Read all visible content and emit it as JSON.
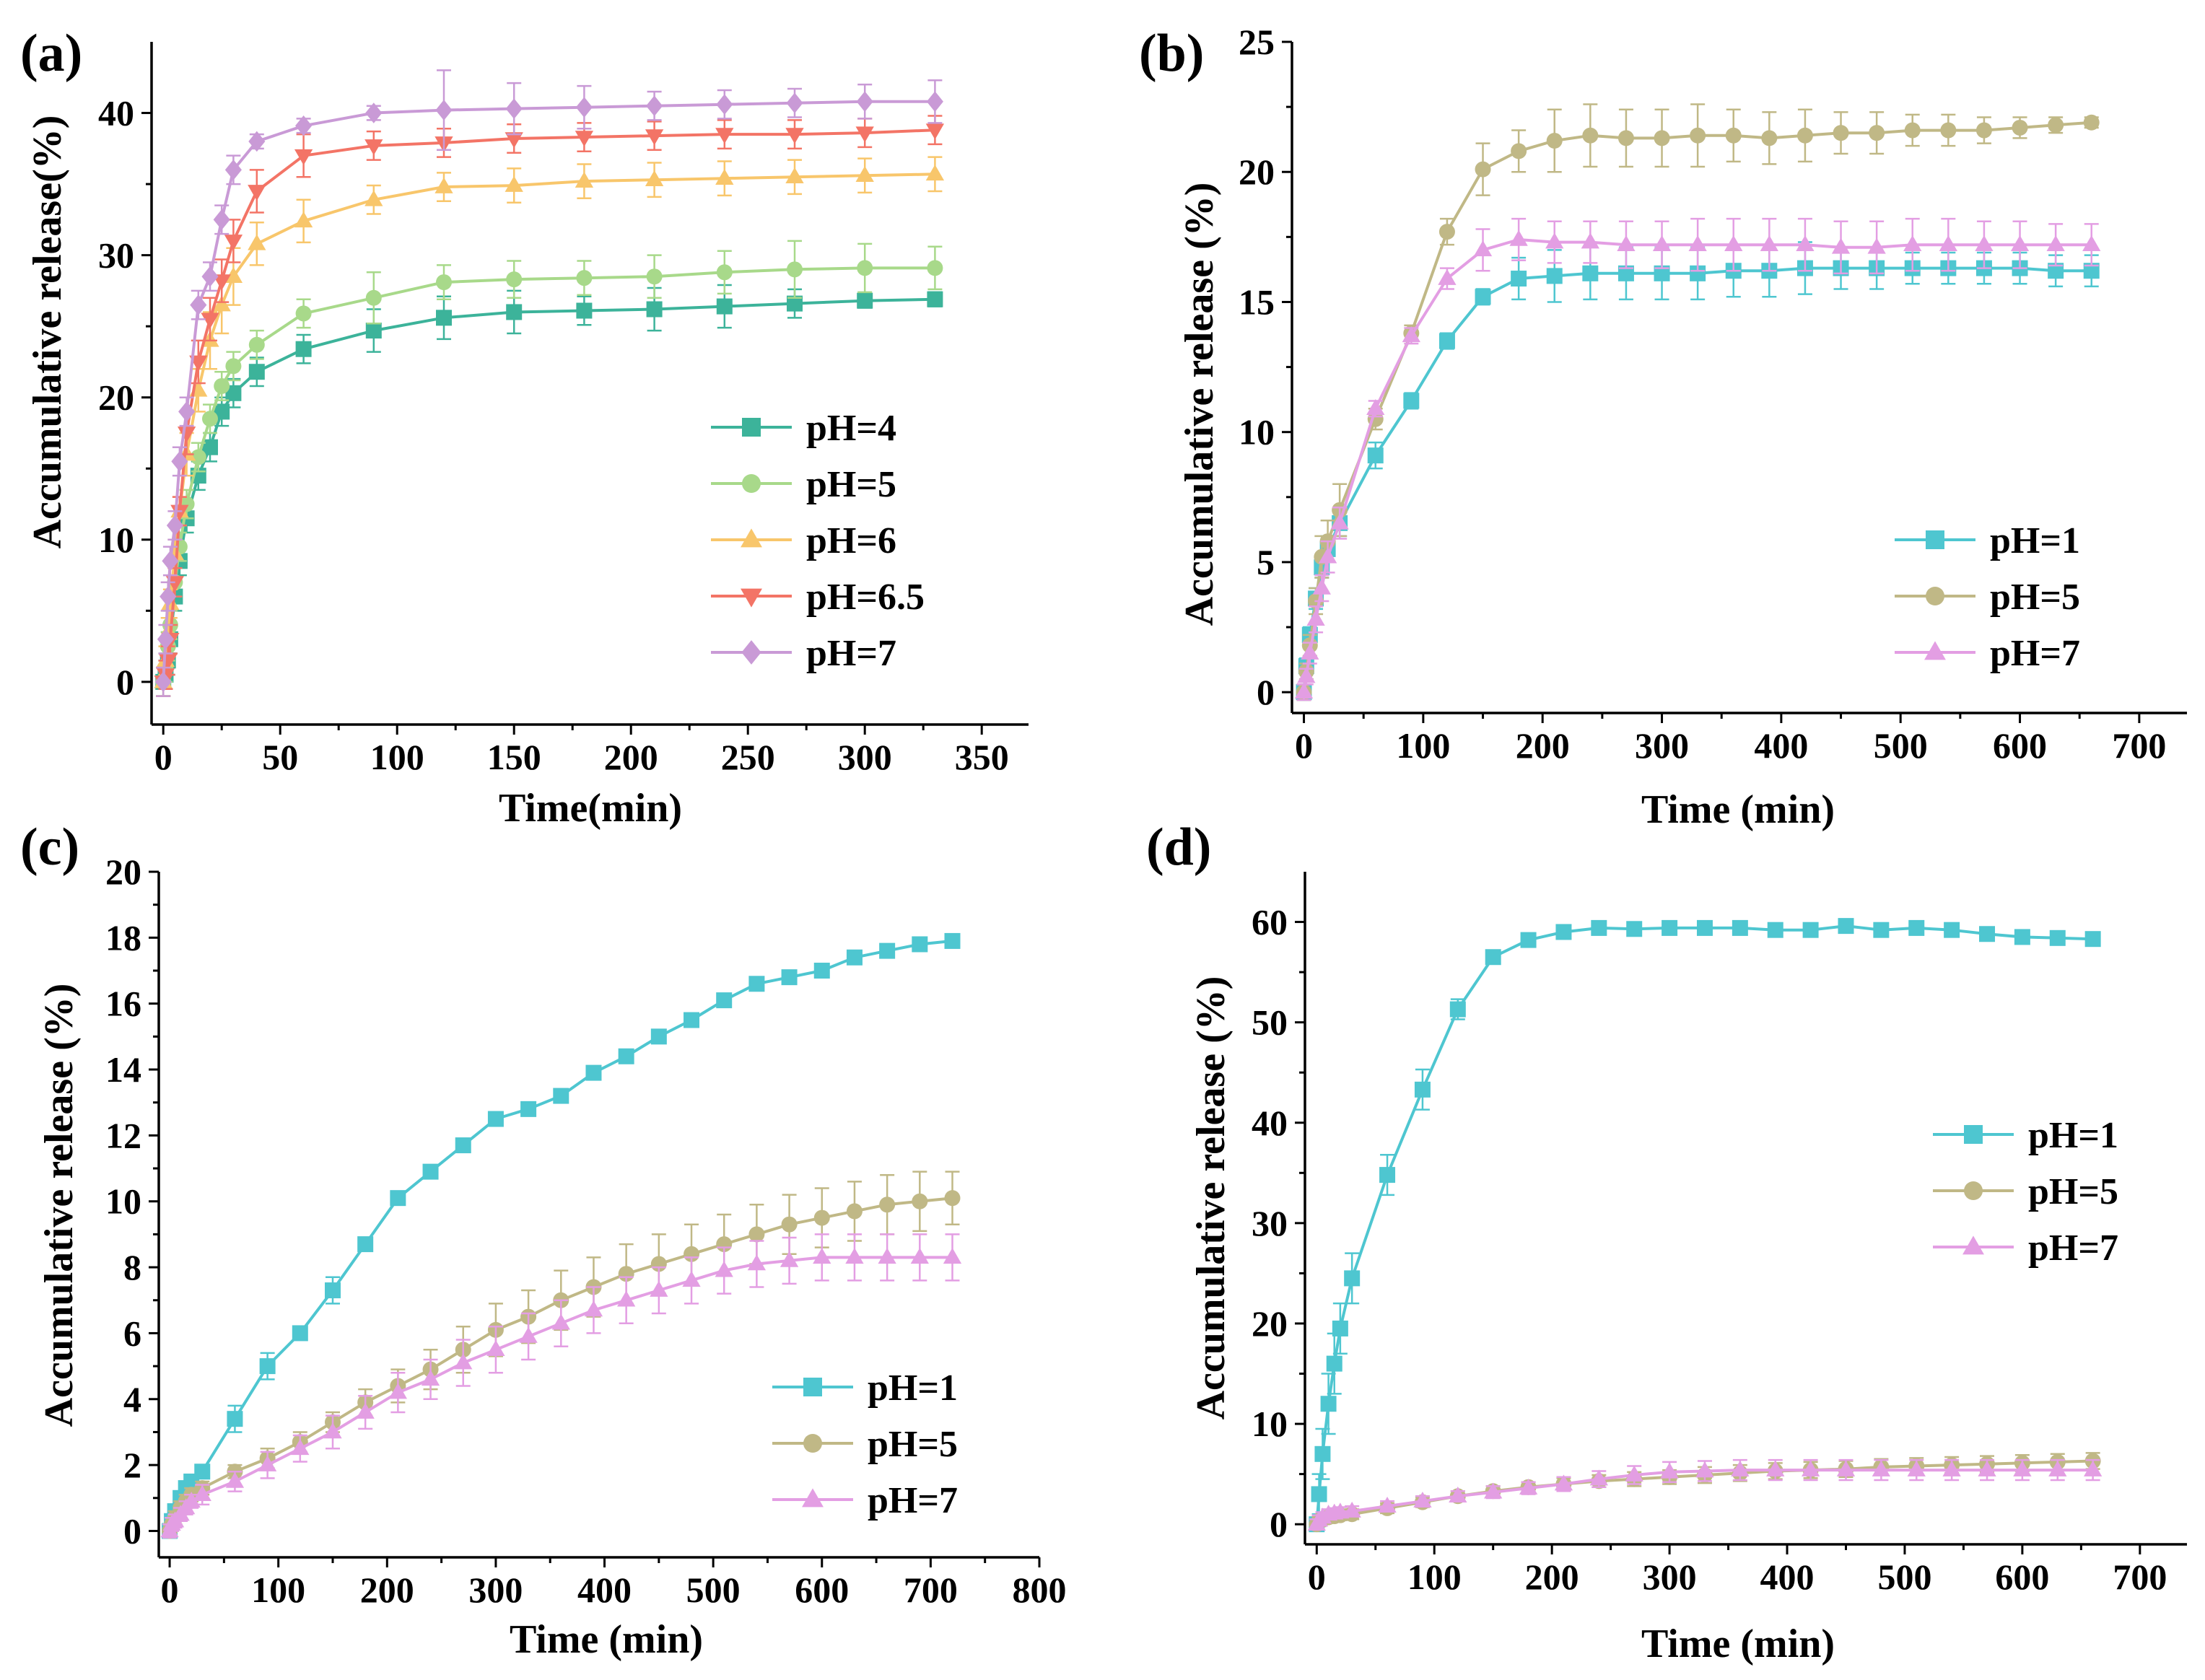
{
  "chart_data": [
    {
      "type": "line",
      "panel_label": "(a)",
      "xlabel": "Time(min)",
      "ylabel": "Accumulative release(%)",
      "xlim": [
        -5,
        370
      ],
      "ylim": [
        -3,
        45
      ],
      "xticks": [
        0,
        50,
        100,
        150,
        200,
        250,
        300,
        350
      ],
      "yticks": [
        0,
        10,
        20,
        30,
        40
      ],
      "x": [
        0,
        1,
        2,
        3,
        5,
        7,
        10,
        15,
        20,
        25,
        30,
        40,
        60,
        90,
        120,
        150,
        180,
        210,
        240,
        270,
        300,
        330
      ],
      "series": [
        {
          "name": "pH=4",
          "color": "#3cb39a",
          "marker": "square",
          "values": [
            0,
            0.5,
            1.5,
            3,
            6,
            8.5,
            11.5,
            14.5,
            16.5,
            19,
            20.3,
            21.8,
            23.4,
            24.7,
            25.6,
            26,
            26.1,
            26.2,
            26.4,
            26.6,
            26.8,
            26.9
          ],
          "errors": [
            1.0,
            1.0,
            1.0,
            1.0,
            1.0,
            1.0,
            1.0,
            1.0,
            1.0,
            1.0,
            1.0,
            1.0,
            1.0,
            1.5,
            1.5,
            1.5,
            1.0,
            1.5,
            1.5,
            1.0,
            0.5,
            0.5
          ]
        },
        {
          "name": "pH=5",
          "color": "#a8d98a",
          "marker": "circle",
          "values": [
            0,
            1,
            2.5,
            4,
            7,
            9.5,
            12.5,
            15.8,
            18.5,
            20.8,
            22.2,
            23.7,
            25.9,
            27,
            28.1,
            28.3,
            28.4,
            28.5,
            28.8,
            29,
            29.1,
            29.1
          ],
          "errors": [
            1.0,
            1.0,
            1.0,
            1.0,
            1.0,
            1.0,
            1.0,
            1.0,
            1.0,
            1.0,
            1.0,
            1.0,
            1.0,
            1.8,
            1.2,
            1.3,
            1.2,
            1.5,
            1.5,
            2.0,
            1.7,
            1.5
          ]
        },
        {
          "name": "pH=6",
          "color": "#f8c66b",
          "marker": "triangle-up",
          "values": [
            0,
            1.5,
            3.5,
            5.5,
            9,
            12,
            16,
            20.5,
            24,
            26.5,
            28.5,
            30.8,
            32.4,
            33.9,
            34.8,
            34.9,
            35.2,
            35.3,
            35.4,
            35.5,
            35.6,
            35.7
          ],
          "errors": [
            1.0,
            1.0,
            1.0,
            1.0,
            1.0,
            1.0,
            1.5,
            1.5,
            2.0,
            2.0,
            2.0,
            1.5,
            1.5,
            1.0,
            1.0,
            1.2,
            1.2,
            1.2,
            1.2,
            1.2,
            1.2,
            1.2
          ]
        },
        {
          "name": "pH=6.5",
          "color": "#f37466",
          "marker": "triangle-down",
          "values": [
            0,
            0.5,
            1.5,
            3,
            7,
            12,
            17.5,
            22.5,
            25.5,
            28.2,
            31,
            34.5,
            37,
            37.7,
            37.9,
            38.2,
            38.3,
            38.4,
            38.5,
            38.5,
            38.6,
            38.8
          ],
          "errors": [
            1.0,
            1.0,
            1.0,
            1.0,
            1.0,
            1.0,
            1.5,
            1.5,
            1.5,
            1.5,
            1.5,
            1.5,
            1.5,
            1.0,
            1.0,
            1.0,
            1.0,
            1.0,
            1.0,
            1.0,
            1.0,
            1.0
          ]
        },
        {
          "name": "pH=7",
          "color": "#c99ad6",
          "marker": "diamond",
          "values": [
            0,
            3,
            6,
            8.5,
            11,
            15.5,
            19,
            26.5,
            28.5,
            32.5,
            36,
            38,
            39.1,
            40,
            40.2,
            40.3,
            40.4,
            40.5,
            40.6,
            40.7,
            40.8,
            40.8
          ],
          "errors": [
            1.0,
            1.0,
            1.0,
            1.0,
            1.0,
            1.0,
            1.0,
            1.0,
            1.0,
            1.0,
            1.0,
            0.5,
            0.5,
            0.5,
            2.8,
            1.8,
            1.5,
            1.0,
            1.0,
            1.0,
            1.2,
            1.5
          ]
        }
      ]
    },
    {
      "type": "line",
      "panel_label": "(b)",
      "xlabel": "Time (min)",
      "ylabel": "Accumulative release (%)",
      "xlim": [
        -10,
        740
      ],
      "ylim": [
        -0.8,
        25
      ],
      "xticks": [
        0,
        100,
        200,
        300,
        400,
        500,
        600,
        700
      ],
      "yticks": [
        0,
        5,
        10,
        15,
        20,
        25
      ],
      "x": [
        0,
        2,
        5,
        10,
        15,
        20,
        30,
        60,
        90,
        120,
        150,
        180,
        210,
        240,
        270,
        300,
        330,
        360,
        390,
        420,
        450,
        480,
        510,
        540,
        570,
        600,
        630,
        660
      ],
      "series": [
        {
          "name": "pH=1",
          "color": "#4ec6d0",
          "marker": "square",
          "values": [
            0,
            1.0,
            2.2,
            3.6,
            4.8,
            5.5,
            6.5,
            9.1,
            11.2,
            13.5,
            15.2,
            15.9,
            16.0,
            16.1,
            16.1,
            16.1,
            16.1,
            16.2,
            16.2,
            16.3,
            16.3,
            16.3,
            16.3,
            16.3,
            16.3,
            16.3,
            16.2,
            16.2
          ],
          "errors": [
            0.3,
            0.3,
            0.3,
            0.4,
            0.4,
            0.5,
            0.5,
            0.5,
            0.3,
            0.3,
            0.3,
            0.8,
            1.0,
            1.0,
            1.0,
            1.0,
            1.0,
            1.0,
            1.0,
            1.0,
            0.8,
            0.8,
            0.6,
            0.6,
            0.6,
            0.6,
            0.6,
            0.6
          ]
        },
        {
          "name": "pH=5",
          "color": "#c0b886",
          "marker": "circle",
          "values": [
            0,
            0.8,
            1.8,
            3.5,
            5.2,
            5.8,
            7.0,
            10.5,
            13.8,
            17.7,
            20.1,
            20.8,
            21.2,
            21.4,
            21.3,
            21.3,
            21.4,
            21.4,
            21.3,
            21.4,
            21.5,
            21.5,
            21.6,
            21.6,
            21.6,
            21.7,
            21.8,
            21.9
          ],
          "errors": [
            0.3,
            0.3,
            0.4,
            0.5,
            0.8,
            0.8,
            1.0,
            0.4,
            0.3,
            0.5,
            1.0,
            0.8,
            1.2,
            1.2,
            1.1,
            1.1,
            1.2,
            1.0,
            1.0,
            1.0,
            0.8,
            0.8,
            0.6,
            0.6,
            0.5,
            0.4,
            0.3,
            0.2
          ]
        },
        {
          "name": "pH=7",
          "color": "#e39ee3",
          "marker": "triangle-up",
          "values": [
            0,
            0.6,
            1.5,
            2.8,
            4.0,
            5.2,
            6.5,
            10.9,
            13.7,
            15.9,
            17.0,
            17.4,
            17.3,
            17.3,
            17.2,
            17.2,
            17.2,
            17.2,
            17.2,
            17.2,
            17.1,
            17.1,
            17.2,
            17.2,
            17.2,
            17.2,
            17.2,
            17.2
          ],
          "errors": [
            0.3,
            0.3,
            0.4,
            0.5,
            0.5,
            0.6,
            0.6,
            0.3,
            0.3,
            0.4,
            0.8,
            0.8,
            0.8,
            0.8,
            0.9,
            0.9,
            1.0,
            1.0,
            1.0,
            1.0,
            1.0,
            1.0,
            1.0,
            1.0,
            0.9,
            0.9,
            0.8,
            0.8
          ]
        }
      ]
    },
    {
      "type": "line",
      "panel_label": "(c)",
      "xlabel": "Time (min)",
      "ylabel": "Accumulative release (%)",
      "xlim": [
        -10,
        800
      ],
      "ylim": [
        -0.8,
        20
      ],
      "xticks": [
        0,
        100,
        200,
        300,
        400,
        500,
        600,
        700,
        800
      ],
      "yticks": [
        0,
        2,
        4,
        6,
        8,
        10,
        12,
        14,
        16,
        18,
        20
      ],
      "x": [
        0,
        2,
        5,
        10,
        15,
        20,
        30,
        60,
        90,
        120,
        150,
        180,
        210,
        240,
        270,
        300,
        330,
        360,
        390,
        420,
        450,
        480,
        510,
        540,
        570,
        600,
        630,
        660,
        690,
        720
      ],
      "series": [
        {
          "name": "pH=1",
          "color": "#4ec6d0",
          "marker": "square",
          "values": [
            0,
            0.3,
            0.6,
            1.0,
            1.3,
            1.5,
            1.8,
            3.4,
            5.0,
            6.0,
            7.3,
            8.7,
            10.1,
            10.9,
            11.7,
            12.5,
            12.8,
            13.2,
            13.9,
            14.4,
            15.0,
            15.5,
            16.1,
            16.6,
            16.8,
            17.0,
            17.4,
            17.6,
            17.8,
            17.9
          ],
          "errors": [
            0.2,
            0.2,
            0.2,
            0.2,
            0.2,
            0.2,
            0.2,
            0.4,
            0.4,
            0.2,
            0.4,
            0.2,
            0.2,
            0.2,
            0.2,
            0.2,
            0.2,
            0.2,
            0.2,
            0.2,
            0.2,
            0.2,
            0.2,
            0.2,
            0.2,
            0.2,
            0.2,
            0.2,
            0.2,
            0.2
          ]
        },
        {
          "name": "pH=5",
          "color": "#c0b886",
          "marker": "circle",
          "values": [
            0,
            0.2,
            0.4,
            0.7,
            0.9,
            1.1,
            1.3,
            1.8,
            2.2,
            2.7,
            3.3,
            3.9,
            4.4,
            4.9,
            5.5,
            6.1,
            6.5,
            7.0,
            7.4,
            7.8,
            8.1,
            8.4,
            8.7,
            9.0,
            9.3,
            9.5,
            9.7,
            9.9,
            10.0,
            10.1
          ],
          "errors": [
            0.2,
            0.2,
            0.2,
            0.2,
            0.2,
            0.2,
            0.2,
            0.2,
            0.3,
            0.3,
            0.3,
            0.4,
            0.5,
            0.6,
            0.7,
            0.8,
            0.8,
            0.9,
            0.9,
            0.9,
            0.9,
            0.9,
            0.9,
            0.9,
            0.9,
            0.9,
            0.9,
            0.9,
            0.9,
            0.8
          ]
        },
        {
          "name": "pH=7",
          "color": "#e39ee3",
          "marker": "triangle-up",
          "values": [
            0,
            0.2,
            0.3,
            0.5,
            0.7,
            0.9,
            1.1,
            1.5,
            2.0,
            2.5,
            3.0,
            3.6,
            4.2,
            4.6,
            5.1,
            5.5,
            5.9,
            6.3,
            6.7,
            7.0,
            7.3,
            7.6,
            7.9,
            8.1,
            8.2,
            8.3,
            8.3,
            8.3,
            8.3,
            8.3
          ],
          "errors": [
            0.2,
            0.2,
            0.2,
            0.2,
            0.2,
            0.2,
            0.3,
            0.3,
            0.4,
            0.4,
            0.5,
            0.5,
            0.6,
            0.6,
            0.7,
            0.7,
            0.7,
            0.7,
            0.7,
            0.7,
            0.7,
            0.7,
            0.7,
            0.7,
            0.7,
            0.7,
            0.7,
            0.7,
            0.7,
            0.7
          ]
        }
      ]
    },
    {
      "type": "line",
      "panel_label": "(d)",
      "xlabel": "Time (min)",
      "ylabel": "Accumulative release (%)",
      "xlim": [
        -10,
        740
      ],
      "ylim": [
        -2,
        65
      ],
      "xticks": [
        0,
        100,
        200,
        300,
        400,
        500,
        600,
        700
      ],
      "yticks": [
        0,
        10,
        20,
        30,
        40,
        50,
        60
      ],
      "x": [
        0,
        2,
        5,
        10,
        15,
        20,
        30,
        60,
        90,
        120,
        150,
        180,
        210,
        240,
        270,
        300,
        330,
        360,
        390,
        420,
        450,
        480,
        510,
        540,
        570,
        600,
        630,
        660
      ],
      "series": [
        {
          "name": "pH=1",
          "color": "#4ec6d0",
          "marker": "square",
          "values": [
            0,
            3,
            7,
            12,
            16,
            19.5,
            24.5,
            34.8,
            43.3,
            51.3,
            56.5,
            58.2,
            59,
            59.4,
            59.3,
            59.4,
            59.4,
            59.4,
            59.2,
            59.2,
            59.6,
            59.2,
            59.4,
            59.2,
            58.8,
            58.5,
            58.4,
            58.3
          ],
          "errors": [
            0.5,
            2.0,
            2.5,
            3.0,
            3.0,
            2.5,
            2.5,
            2.0,
            2.0,
            1.0,
            0.5,
            0.5,
            0.5,
            0.5,
            0.5,
            0.5,
            0.5,
            0.5,
            0.5,
            0.5,
            0.5,
            0.5,
            0.5,
            0.5,
            0.5,
            0.5,
            0.5,
            0.5
          ]
        },
        {
          "name": "pH=5",
          "color": "#c0b886",
          "marker": "circle",
          "values": [
            0,
            0.3,
            0.5,
            0.7,
            0.8,
            0.9,
            1.0,
            1.6,
            2.2,
            2.8,
            3.3,
            3.7,
            4.0,
            4.3,
            4.5,
            4.7,
            4.9,
            5.1,
            5.3,
            5.4,
            5.5,
            5.7,
            5.8,
            5.9,
            6.0,
            6.1,
            6.2,
            6.3
          ],
          "errors": [
            0.5,
            0.5,
            0.5,
            0.5,
            0.5,
            0.5,
            0.5,
            0.5,
            0.5,
            0.5,
            0.5,
            0.5,
            0.6,
            0.6,
            0.7,
            0.7,
            0.8,
            0.8,
            0.8,
            0.8,
            0.8,
            0.8,
            0.8,
            0.8,
            0.8,
            0.8,
            0.8,
            0.8
          ]
        },
        {
          "name": "pH=7",
          "color": "#e39ee3",
          "marker": "triangle-up",
          "values": [
            0,
            0.4,
            0.7,
            1.0,
            1.1,
            1.2,
            1.3,
            1.8,
            2.3,
            2.8,
            3.2,
            3.6,
            4.0,
            4.5,
            4.9,
            5.2,
            5.3,
            5.4,
            5.4,
            5.4,
            5.4,
            5.4,
            5.4,
            5.4,
            5.4,
            5.4,
            5.4,
            5.4
          ],
          "errors": [
            0.5,
            0.5,
            0.5,
            0.5,
            0.5,
            0.5,
            0.5,
            0.5,
            0.5,
            0.5,
            0.6,
            0.6,
            0.7,
            0.8,
            0.9,
            1.0,
            1.0,
            1.0,
            1.0,
            1.0,
            1.0,
            1.0,
            1.0,
            1.0,
            1.0,
            1.0,
            1.0,
            1.0
          ]
        }
      ]
    }
  ]
}
